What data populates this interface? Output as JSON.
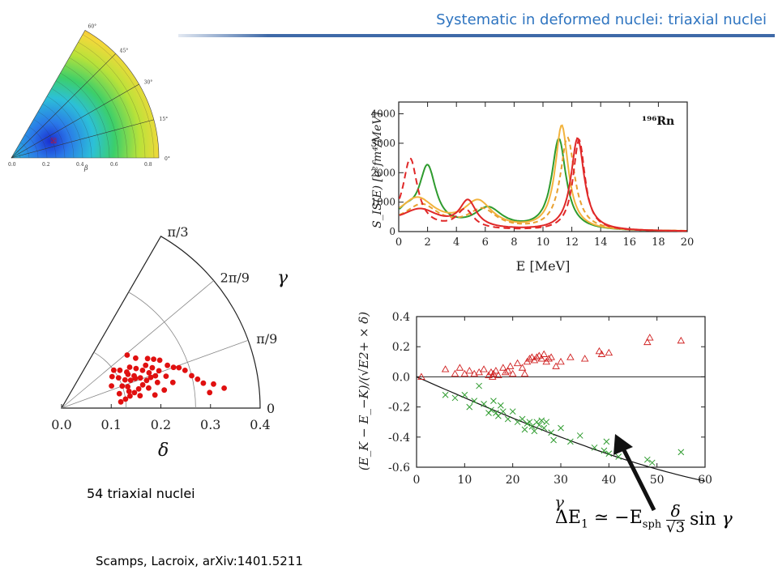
{
  "slide": {
    "title": "Systematic in deformed nuclei: triaxial nuclei",
    "nuclei_count": "54 triaxial nuclei",
    "reference": "Scamps, Lacroix, arXiv:1401.5211",
    "formula": "ΔE₁ ≃ −E_sph (δ/√3) sin γ"
  },
  "energy_surface": {
    "angle_labels": [
      "60°",
      "45°",
      "30°",
      "15°",
      "0°"
    ],
    "beta_ticks": [
      "0.0",
      "0.2",
      "0.4",
      "0.6",
      "0.8"
    ],
    "xlabel": "β"
  },
  "chart_data": [
    {
      "type": "scatter",
      "id": "polar-triaxial",
      "coordinates": "polar (delta, gamma)",
      "radial_label": "δ",
      "angular_label": "γ",
      "radial_ticks": [
        "0.0",
        "0.1",
        "0.2",
        "0.3",
        "0.4"
      ],
      "angular_ticks": [
        "0",
        "π/9",
        "2π/9",
        "π/3"
      ],
      "rlim": [
        0,
        0.4
      ],
      "arcs_at": [
        0.13,
        0.27
      ],
      "points_deg": [
        [
          0.12,
          14
        ],
        [
          0.13,
          20
        ],
        [
          0.14,
          24
        ],
        [
          0.15,
          27
        ],
        [
          0.14,
          33
        ],
        [
          0.13,
          36
        ],
        [
          0.16,
          31
        ],
        [
          0.17,
          28
        ],
        [
          0.16,
          24
        ],
        [
          0.15,
          22
        ],
        [
          0.17,
          21
        ],
        [
          0.18,
          25
        ],
        [
          0.19,
          27
        ],
        [
          0.2,
          24
        ],
        [
          0.21,
          21
        ],
        [
          0.19,
          19
        ],
        [
          0.18,
          18
        ],
        [
          0.17,
          16
        ],
        [
          0.16,
          14
        ],
        [
          0.15,
          12
        ],
        [
          0.14,
          10
        ],
        [
          0.13,
          8
        ],
        [
          0.12,
          6
        ],
        [
          0.18,
          13
        ],
        [
          0.2,
          15
        ],
        [
          0.22,
          17
        ],
        [
          0.23,
          22
        ],
        [
          0.22,
          26
        ],
        [
          0.21,
          28
        ],
        [
          0.2,
          30
        ],
        [
          0.24,
          20
        ],
        [
          0.25,
          19
        ],
        [
          0.26,
          17
        ],
        [
          0.27,
          14
        ],
        [
          0.28,
          12
        ],
        [
          0.29,
          10
        ],
        [
          0.31,
          9
        ],
        [
          0.33,
          7
        ],
        [
          0.3,
          6
        ],
        [
          0.16,
          9
        ],
        [
          0.19,
          8
        ],
        [
          0.21,
          10
        ],
        [
          0.14,
          18
        ],
        [
          0.15,
          29
        ],
        [
          0.12,
          32
        ],
        [
          0.13,
          28
        ],
        [
          0.11,
          24
        ],
        [
          0.18,
          34
        ],
        [
          0.17,
          39
        ],
        [
          0.16,
          22
        ],
        [
          0.19,
          22
        ],
        [
          0.2,
          19
        ],
        [
          0.23,
          13
        ],
        [
          0.14,
          14
        ]
      ]
    },
    {
      "type": "line",
      "id": "strength-function",
      "xlabel": "E [MeV]",
      "ylabel": "S_IS(E) [e²fm⁴/MeV]",
      "annotation": "¹⁹⁶Rn",
      "xlim": [
        0,
        20
      ],
      "ylim": [
        0,
        4400
      ],
      "x_ticks": [
        0,
        2,
        4,
        6,
        8,
        10,
        12,
        14,
        16,
        18,
        20
      ],
      "y_ticks": [
        0,
        1000,
        2000,
        3000,
        4000
      ],
      "series": [
        {
          "color": "#2e9b2e",
          "dash": "",
          "peaks": [
            [
              0.5,
              400,
              0.8
            ],
            [
              2.0,
              2000,
              0.7
            ],
            [
              6.2,
              700,
              1.2
            ],
            [
              11.1,
              3100,
              0.6
            ]
          ]
        },
        {
          "color": "#f2b33d",
          "dash": "",
          "peaks": [
            [
              1.3,
              950,
              1.5
            ],
            [
              5.5,
              900,
              1.2
            ],
            [
              11.3,
              3550,
              0.55
            ]
          ]
        },
        {
          "color": "#e8a030",
          "dash": "6,4",
          "peaks": [
            [
              1.6,
              750,
              1.4
            ],
            [
              5.8,
              650,
              1.2
            ],
            [
              11.7,
              3150,
              0.6
            ]
          ]
        },
        {
          "color": "#e02828",
          "dash": "",
          "peaks": [
            [
              1.5,
              600,
              1.6
            ],
            [
              4.8,
              900,
              0.7
            ],
            [
              12.4,
              3150,
              0.55
            ]
          ]
        },
        {
          "color": "#e02828",
          "dash": "8,5",
          "peaks": [
            [
              0.8,
              2300,
              0.6
            ],
            [
              4.6,
              650,
              0.7
            ],
            [
              12.5,
              3100,
              0.5
            ]
          ]
        }
      ],
      "baseline": 200
    },
    {
      "type": "scatter",
      "id": "splitting-vs-gamma",
      "xlabel": "γ",
      "ylabel": "(E_K − E_−K)/(√E2+ × δ)",
      "xlim": [
        0,
        60
      ],
      "ylim": [
        -0.6,
        0.4
      ],
      "x_ticks": [
        0,
        10,
        20,
        30,
        40,
        50,
        60
      ],
      "y_ticks": [
        -0.6,
        -0.4,
        -0.2,
        0.0,
        0.2,
        0.4
      ],
      "triangles": [
        [
          1,
          0.0
        ],
        [
          6,
          0.05
        ],
        [
          8,
          0.02
        ],
        [
          9,
          0.06
        ],
        [
          10,
          0.02
        ],
        [
          11,
          0.04
        ],
        [
          12,
          0.02
        ],
        [
          13,
          0.03
        ],
        [
          14,
          0.05
        ],
        [
          15,
          0.01
        ],
        [
          15.5,
          0.03
        ],
        [
          15.8,
          0.0
        ],
        [
          16,
          0.02
        ],
        [
          16.5,
          0.04
        ],
        [
          17,
          0.01
        ],
        [
          18,
          0.06
        ],
        [
          18.5,
          0.03
        ],
        [
          19,
          0.04
        ],
        [
          19.5,
          0.07
        ],
        [
          20,
          0.02
        ],
        [
          21,
          0.09
        ],
        [
          22,
          0.06
        ],
        [
          22.5,
          0.02
        ],
        [
          23,
          0.1
        ],
        [
          23.5,
          0.12
        ],
        [
          24,
          0.13
        ],
        [
          24.5,
          0.11
        ],
        [
          25,
          0.13
        ],
        [
          25.5,
          0.14
        ],
        [
          26,
          0.12
        ],
        [
          26.5,
          0.15
        ],
        [
          27,
          0.1
        ],
        [
          27.5,
          0.12
        ],
        [
          28,
          0.13
        ],
        [
          29,
          0.07
        ],
        [
          30,
          0.1
        ],
        [
          32,
          0.13
        ],
        [
          35,
          0.12
        ],
        [
          38,
          0.17
        ],
        [
          38.5,
          0.15
        ],
        [
          40,
          0.16
        ],
        [
          48,
          0.23
        ],
        [
          48.5,
          0.26
        ],
        [
          55,
          0.24
        ]
      ],
      "crosses": [
        [
          6,
          -0.12
        ],
        [
          8,
          -0.14
        ],
        [
          10,
          -0.12
        ],
        [
          11,
          -0.2
        ],
        [
          12,
          -0.16
        ],
        [
          13,
          -0.06
        ],
        [
          14,
          -0.18
        ],
        [
          15,
          -0.24
        ],
        [
          15.5,
          -0.22
        ],
        [
          16,
          -0.16
        ],
        [
          16.5,
          -0.24
        ],
        [
          17,
          -0.26
        ],
        [
          17.5,
          -0.19
        ],
        [
          18,
          -0.23
        ],
        [
          19,
          -0.28
        ],
        [
          20,
          -0.23
        ],
        [
          21,
          -0.3
        ],
        [
          22,
          -0.28
        ],
        [
          22.5,
          -0.35
        ],
        [
          23,
          -0.31
        ],
        [
          23.5,
          -0.3
        ],
        [
          24,
          -0.33
        ],
        [
          24.5,
          -0.36
        ],
        [
          25,
          -0.3
        ],
        [
          25.5,
          -0.32
        ],
        [
          26,
          -0.29
        ],
        [
          26.5,
          -0.34
        ],
        [
          27,
          -0.3
        ],
        [
          28,
          -0.37
        ],
        [
          28.5,
          -0.42
        ],
        [
          30,
          -0.34
        ],
        [
          32,
          -0.43
        ],
        [
          34,
          -0.39
        ],
        [
          37,
          -0.47
        ],
        [
          39,
          -0.49
        ],
        [
          39.5,
          -0.43
        ],
        [
          40,
          -0.51
        ],
        [
          42,
          -0.53
        ],
        [
          48,
          -0.55
        ],
        [
          49,
          -0.57
        ],
        [
          55,
          -0.5
        ]
      ],
      "curve": "-0.8 * sin(gamma)"
    }
  ]
}
